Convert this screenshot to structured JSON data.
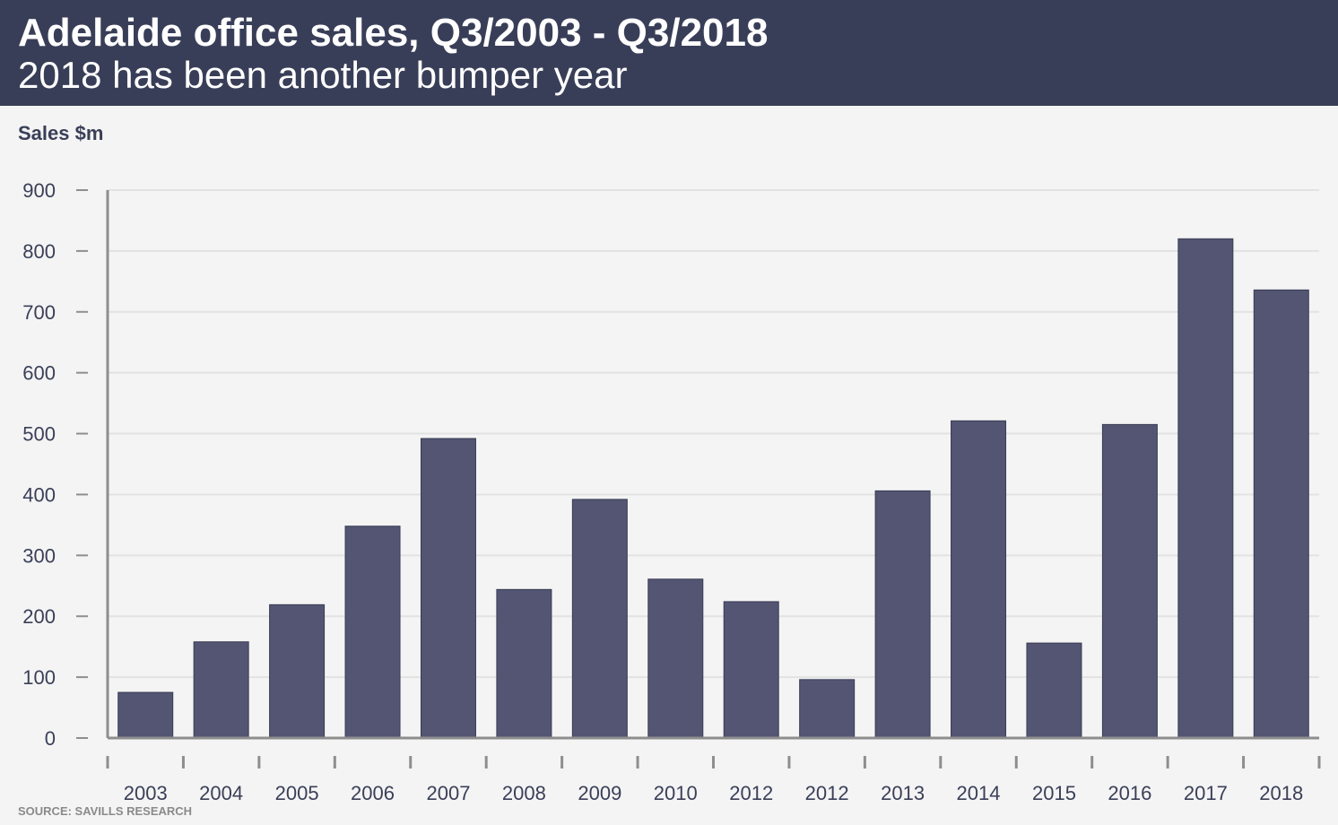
{
  "header": {
    "title": "Adelaide office sales, Q3/2003 - Q3/2018",
    "subtitle": "2018 has been another bumper year"
  },
  "source": "SOURCE: SAVILLS RESEARCH",
  "colors": {
    "header_bg": "#393e58",
    "bar": "#535572",
    "grid": "#e2e2e2",
    "axis": "#8e8e8e"
  },
  "chart_data": {
    "type": "bar",
    "title": "Adelaide office sales, Q3/2003 - Q3/2018",
    "subtitle": "2018 has been another bumper year",
    "xlabel": "",
    "ylabel": "Sales $m",
    "ylim": [
      0,
      900
    ],
    "yticks": [
      0,
      100,
      200,
      300,
      400,
      500,
      600,
      700,
      800,
      900
    ],
    "grid": true,
    "categories": [
      "2003",
      "2004",
      "2005",
      "2006",
      "2007",
      "2008",
      "2009",
      "2010",
      "2012",
      "2012",
      "2013",
      "2014",
      "2015",
      "2016",
      "2017",
      "2018"
    ],
    "values": [
      75,
      158,
      219,
      348,
      492,
      244,
      392,
      261,
      224,
      96,
      406,
      521,
      156,
      515,
      820,
      736
    ]
  }
}
